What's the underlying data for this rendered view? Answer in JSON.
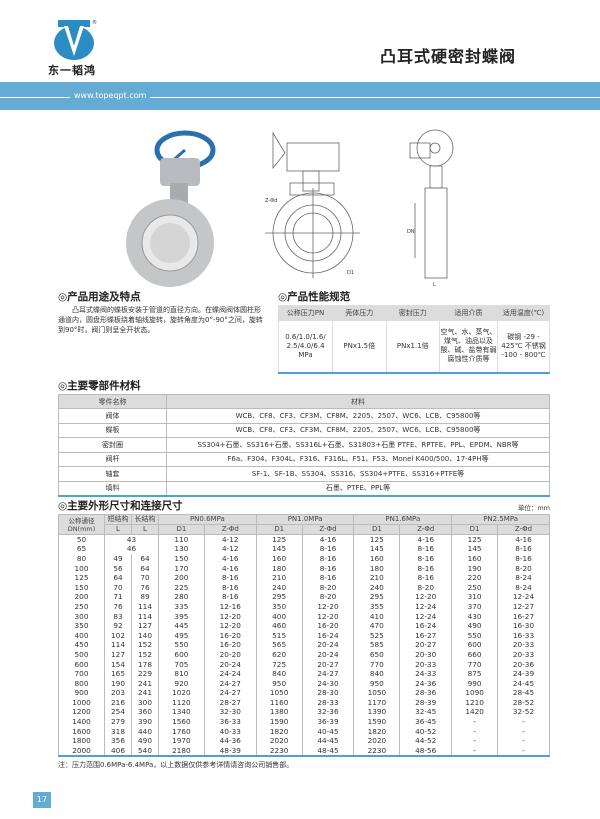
{
  "header": {
    "logo_text": "东一韬鸿",
    "title": "凸耳式硬密封蝶阀",
    "url": "www.topeqpt.com",
    "brand_color": "#64acd4"
  },
  "usage": {
    "heading": "◎产品用途及特点",
    "text": "凸耳式蝶阀的蝶板安装于管道的直径方向。在蝶阀阀体圆柱形通道内，圆盘形蝶板绕着轴线旋转，旋转角度为0°-90°之间，旋转到90°时，阀门则呈全开状态。"
  },
  "drawing": {
    "label_z": "Z-Φd",
    "label_d1": "D1",
    "label_dn": "DN",
    "label_l": "L"
  },
  "spec": {
    "heading": "◎产品性能规范",
    "headers": [
      "公称压力PN",
      "壳体压力",
      "密封压力",
      "适用介质",
      "适用温度(℃)"
    ],
    "row": [
      "0.6/1.0/1.6/ 2.5/4.0/6.4 MPa",
      "PNx1.5倍",
      "PNx1.1倍",
      "空气、水、蒸气、煤气、油品以及酸、碱、盐带有弱腐蚀性介质等",
      "碳钢 -29 - 425℃ 不锈钢 -100 - 800℃"
    ]
  },
  "materials": {
    "heading": "◎主要零部件材料",
    "headers": [
      "零件名称",
      "材料"
    ],
    "rows": [
      [
        "阀体",
        "WCB、CF8、CF3、CF3M、CF8M、2205、2507、WC6、LCB、C95800等"
      ],
      [
        "蝶板",
        "WCB、CF8、CF3、CF3M、CF8M、2205、2507、WC6、LCB、C95800等"
      ],
      [
        "密封圈",
        "SS304+石墨、SS316+石墨、SS316L+石墨、S31803+石墨 PTFE、RPTFE、PPL、EPDM、NBR等"
      ],
      [
        "阀杆",
        "F6a、F304、F304L、F316、F316L、F51、F53、Monel K400/500、17-4PH等"
      ],
      [
        "轴套",
        "SF-1、SF-1B、SS304、SS316、SS304+PTFE、SS316+PTFE等"
      ],
      [
        "填料",
        "石墨、PTFE、PPL等"
      ]
    ]
  },
  "dimensions": {
    "heading": "◎主要外形尺寸和连接尺寸",
    "unit": "单位：mm",
    "col_dn": "公称通径 DN(mm)",
    "col_short": "短结构",
    "col_long": "长结构",
    "sub_l": "L",
    "pn_groups": [
      "PN0.6MPa",
      "PN1.0MPa",
      "PN1.6MPa",
      "PN2.5MPa"
    ],
    "sub_d1": "D1",
    "sub_z": "Z-Φd",
    "rows": [
      [
        "50",
        "43",
        "",
        "110",
        "4-12",
        "125",
        "4-16",
        "125",
        "4-16",
        "125",
        "4-16"
      ],
      [
        "65",
        "46",
        "",
        "130",
        "4-12",
        "145",
        "8-16",
        "145",
        "8-16",
        "145",
        "8-16"
      ],
      [
        "80",
        "49",
        "64",
        "150",
        "4-16",
        "160",
        "8-16",
        "160",
        "8-16",
        "160",
        "8-16"
      ],
      [
        "100",
        "56",
        "64",
        "170",
        "4-16",
        "180",
        "8-16",
        "180",
        "8-16",
        "190",
        "8-20"
      ],
      [
        "125",
        "64",
        "70",
        "200",
        "8-16",
        "210",
        "8-16",
        "210",
        "8-16",
        "220",
        "8-24"
      ],
      [
        "150",
        "70",
        "76",
        "225",
        "8-16",
        "240",
        "8-20",
        "240",
        "8-20",
        "250",
        "8-24"
      ],
      [
        "200",
        "71",
        "89",
        "280",
        "8-16",
        "295",
        "8-20",
        "295",
        "12-20",
        "310",
        "12-24"
      ],
      [
        "250",
        "76",
        "114",
        "335",
        "12-16",
        "350",
        "12-20",
        "355",
        "12-24",
        "370",
        "12-27"
      ],
      [
        "300",
        "83",
        "114",
        "395",
        "12-20",
        "400",
        "12-20",
        "410",
        "12-24",
        "430",
        "16-27"
      ],
      [
        "350",
        "92",
        "127",
        "445",
        "12-20",
        "460",
        "16-20",
        "470",
        "16-24",
        "490",
        "16-30"
      ],
      [
        "400",
        "102",
        "140",
        "495",
        "16-20",
        "515",
        "16-24",
        "525",
        "16-27",
        "550",
        "16-33"
      ],
      [
        "450",
        "114",
        "152",
        "550",
        "16-20",
        "565",
        "20-24",
        "585",
        "20-27",
        "600",
        "20-33"
      ],
      [
        "500",
        "127",
        "152",
        "600",
        "20-20",
        "620",
        "20-24",
        "650",
        "20-30",
        "660",
        "20-33"
      ],
      [
        "600",
        "154",
        "178",
        "705",
        "20-24",
        "725",
        "20-27",
        "770",
        "20-33",
        "770",
        "20-36"
      ],
      [
        "700",
        "165",
        "229",
        "810",
        "24-24",
        "840",
        "24-27",
        "840",
        "24-33",
        "875",
        "24-39"
      ],
      [
        "800",
        "190",
        "241",
        "920",
        "24-27",
        "950",
        "24-30",
        "950",
        "24-36",
        "990",
        "24-45"
      ],
      [
        "900",
        "203",
        "241",
        "1020",
        "24-27",
        "1050",
        "28-30",
        "1050",
        "28-36",
        "1090",
        "28-45"
      ],
      [
        "1000",
        "216",
        "300",
        "1120",
        "28-27",
        "1160",
        "28-33",
        "1170",
        "28-39",
        "1210",
        "28-52"
      ],
      [
        "1200",
        "254",
        "360",
        "1340",
        "32-30",
        "1380",
        "32-36",
        "1390",
        "32-45",
        "1420",
        "32-52"
      ],
      [
        "1400",
        "279",
        "390",
        "1560",
        "36-33",
        "1590",
        "36-39",
        "1590",
        "36-45",
        "-",
        "-"
      ],
      [
        "1600",
        "318",
        "440",
        "1760",
        "40-33",
        "1820",
        "40-45",
        "1820",
        "40-52",
        "-",
        "-"
      ],
      [
        "1800",
        "356",
        "490",
        "1970",
        "44-36",
        "2020",
        "44-45",
        "2020",
        "44-52",
        "-",
        "-"
      ],
      [
        "2000",
        "406",
        "540",
        "2180",
        "48-39",
        "2230",
        "48-45",
        "2230",
        "48-56",
        "-",
        "-"
      ]
    ],
    "note": "注：压力范围0.6MPa-6.4MPa，以上数据仅供参考详情请咨询公司销售部。"
  },
  "footer": {
    "page": "17"
  }
}
